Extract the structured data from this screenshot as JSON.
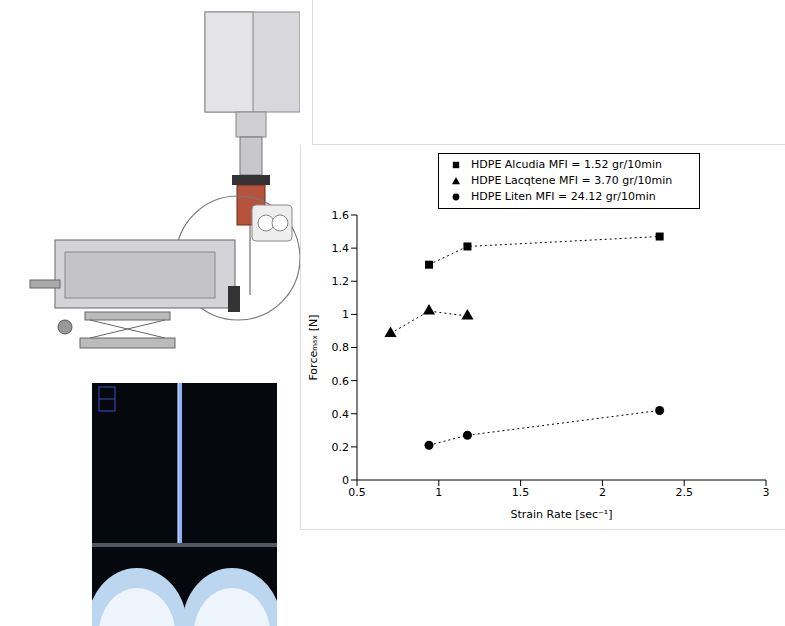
{
  "chart_data": {
    "type": "scatter",
    "x_label": "Strain Rate [sec⁻¹]",
    "y_label": "Forceₘₐₓ [N]",
    "xlim": [
      0.5,
      3
    ],
    "xticks": [
      0.5,
      1,
      1.5,
      2,
      2.5,
      3
    ],
    "ylim": [
      0,
      1.6
    ],
    "yticks": [
      0,
      0.2,
      0.4,
      0.6,
      0.8,
      1,
      1.2,
      1.4,
      1.6
    ],
    "grid": false,
    "legend": "top",
    "series": [
      {
        "name": "HDPE Alcudia MFI = 1.52 gr/10min",
        "color": "#000000",
        "marker": "square",
        "line_style": "dotted",
        "x": [
          0.94,
          1.175,
          2.35
        ],
        "values": [
          1.3,
          1.41,
          1.47
        ]
      },
      {
        "name": "HDPE Lacqtene MFI = 3.70 gr/10min",
        "color": "#000000",
        "marker": "triangle",
        "line_style": "dotted",
        "x": [
          0.705,
          0.94,
          1.175
        ],
        "values": [
          0.885,
          1.02,
          0.99
        ]
      },
      {
        "name": "HDPE Liten MFI = 24.12 gr/10min",
        "color": "#000000",
        "marker": "circle",
        "line_style": "dotted",
        "x": [
          0.94,
          1.175,
          2.35
        ],
        "values": [
          0.21,
          0.27,
          0.42
        ]
      }
    ]
  }
}
